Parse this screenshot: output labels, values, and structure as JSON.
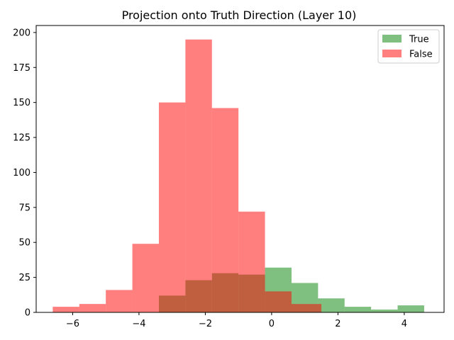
{
  "chart_data": {
    "type": "bar",
    "title": "Projection onto Truth Direction (Layer 10)",
    "xlabel": "",
    "ylabel": "",
    "xlim": [
      -7.1,
      5.2
    ],
    "ylim": [
      0,
      205
    ],
    "xticks": [
      -6,
      -4,
      -2,
      0,
      2,
      4
    ],
    "yticks": [
      0,
      25,
      50,
      75,
      100,
      125,
      150,
      175,
      200
    ],
    "grid": false,
    "legend": "top-right",
    "series": [
      {
        "name": "True",
        "color": "#008000",
        "opacity": 0.5,
        "bins": [
          {
            "x0": -3.4,
            "x1": -2.6,
            "count": 12
          },
          {
            "x0": -2.6,
            "x1": -1.8,
            "count": 23
          },
          {
            "x0": -1.8,
            "x1": -1.0,
            "count": 28
          },
          {
            "x0": -1.0,
            "x1": -0.2,
            "count": 27
          },
          {
            "x0": -0.2,
            "x1": 0.6,
            "count": 32
          },
          {
            "x0": 0.6,
            "x1": 1.4,
            "count": 21
          },
          {
            "x0": 1.4,
            "x1": 2.2,
            "count": 10
          },
          {
            "x0": 2.2,
            "x1": 3.0,
            "count": 4
          },
          {
            "x0": 3.0,
            "x1": 3.8,
            "count": 2
          },
          {
            "x0": 3.8,
            "x1": 4.6,
            "count": 5
          }
        ]
      },
      {
        "name": "False",
        "color": "#ff0000",
        "opacity": 0.5,
        "bins": [
          {
            "x0": -6.6,
            "x1": -5.8,
            "count": 4
          },
          {
            "x0": -5.8,
            "x1": -5.0,
            "count": 6
          },
          {
            "x0": -5.0,
            "x1": -4.2,
            "count": 16
          },
          {
            "x0": -4.2,
            "x1": -3.4,
            "count": 49
          },
          {
            "x0": -3.4,
            "x1": -2.6,
            "count": 150
          },
          {
            "x0": -2.6,
            "x1": -1.8,
            "count": 195
          },
          {
            "x0": -1.8,
            "x1": -1.0,
            "count": 146
          },
          {
            "x0": -1.0,
            "x1": -0.2,
            "count": 72
          },
          {
            "x0": -0.2,
            "x1": 0.6,
            "count": 15
          },
          {
            "x0": 0.6,
            "x1": 1.5,
            "count": 6
          }
        ]
      }
    ]
  }
}
